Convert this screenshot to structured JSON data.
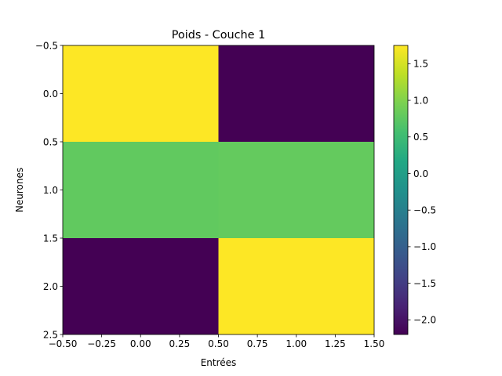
{
  "chart_data": {
    "type": "heatmap",
    "title": "Poids - Couche 1",
    "xlabel": "Entrées",
    "ylabel": "Neurones",
    "x_ticks": [
      "−0.50",
      "−0.25",
      "0.00",
      "0.25",
      "0.50",
      "0.75",
      "1.00",
      "1.25",
      "1.50"
    ],
    "x_tick_values": [
      -0.5,
      -0.25,
      0.0,
      0.25,
      0.5,
      0.75,
      1.0,
      1.25,
      1.5
    ],
    "y_ticks": [
      "−0.5",
      "0.0",
      "0.5",
      "1.0",
      "1.5",
      "2.0",
      "2.5"
    ],
    "y_tick_values": [
      -0.5,
      0.0,
      0.5,
      1.0,
      1.5,
      2.0,
      2.5
    ],
    "xlim": [
      -0.5,
      1.5
    ],
    "ylim": [
      2.5,
      -0.5
    ],
    "rows": 3,
    "cols": 2,
    "values": [
      [
        1.75,
        -2.2
      ],
      [
        0.78,
        0.8
      ],
      [
        -2.2,
        1.75
      ]
    ],
    "colormap": "viridis",
    "colorbar": {
      "vmin": -2.2,
      "vmax": 1.75,
      "ticks": [
        "−2.0",
        "−1.5",
        "−1.0",
        "−0.5",
        "0.0",
        "0.5",
        "1.0",
        "1.5"
      ],
      "tick_values": [
        -2.0,
        -1.5,
        -1.0,
        -0.5,
        0.0,
        0.5,
        1.0,
        1.5
      ]
    },
    "grid": false
  }
}
